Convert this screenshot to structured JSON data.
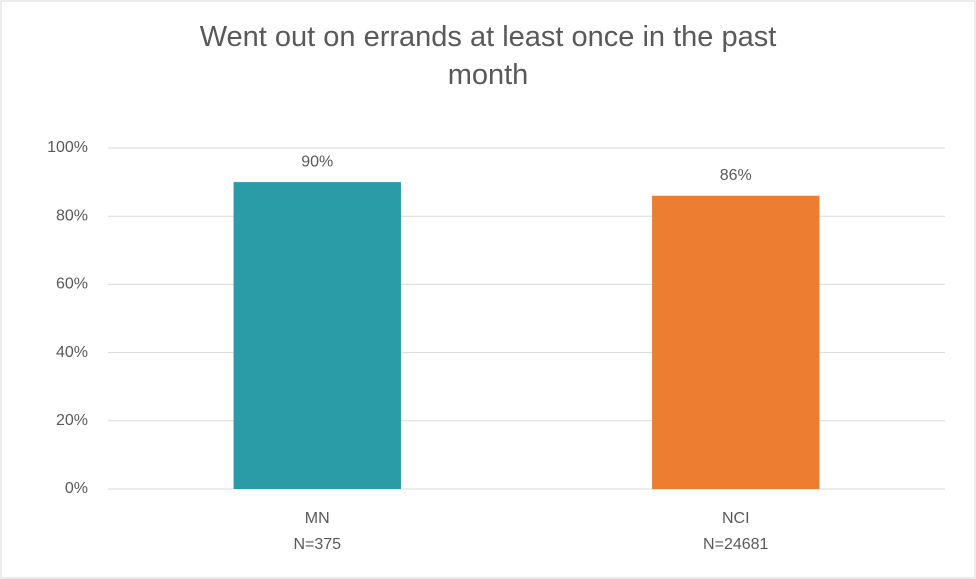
{
  "chart_data": {
    "type": "bar",
    "title": "Went out on errands at least once in the past month",
    "categories": [
      "MN",
      "NCI"
    ],
    "category_sublabels": [
      "N=375",
      "N=24681"
    ],
    "values": [
      90,
      86
    ],
    "value_labels": [
      "90%",
      "86%"
    ],
    "colors": [
      "#2a9ca8",
      "#ed7d31"
    ],
    "ylim": [
      0,
      100
    ],
    "yticks": [
      {
        "value": 0,
        "label": "0%"
      },
      {
        "value": 20,
        "label": "20%"
      },
      {
        "value": 40,
        "label": "40%"
      },
      {
        "value": 60,
        "label": "60%"
      },
      {
        "value": 80,
        "label": "80%"
      },
      {
        "value": 100,
        "label": "100%"
      }
    ],
    "grid": true
  }
}
